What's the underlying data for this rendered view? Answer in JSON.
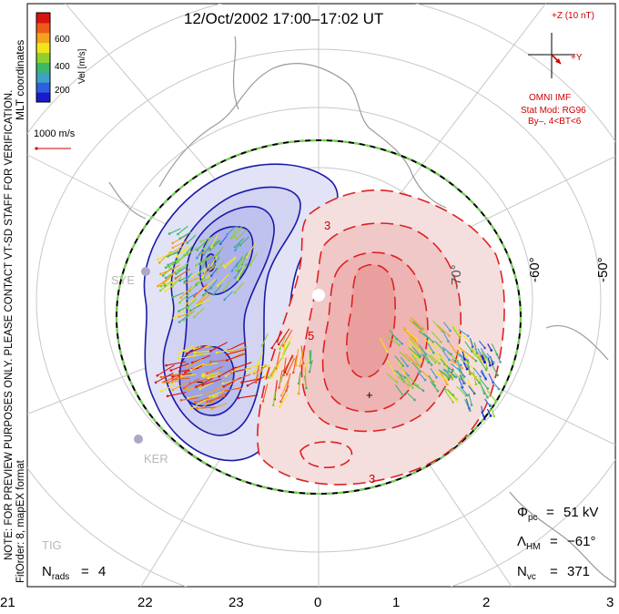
{
  "title": "12/Oct/2002 17:00–17:02 UT",
  "coord_system": "MLT coordinates",
  "watermark": "NOTE: FOR PREVIEW PURPOSES ONLY. PLEASE CONTACT VT-SD STAFF FOR VERIFICATION.",
  "fit_info": "FitOrder: 8, mapEX format",
  "colorbar": {
    "label": "Vel [m/s]",
    "ticks": [
      "600",
      "400",
      "200"
    ],
    "colors": [
      "#1a1acc",
      "#2e5fe0",
      "#3fa0c8",
      "#3db86a",
      "#8ed12f",
      "#f2e51c",
      "#f5a21c",
      "#ef5a1a",
      "#d8140f"
    ]
  },
  "velocity_scale": "1000 m/s",
  "imf": {
    "z_label": "+Z (10 nT)",
    "y_label": "+Y",
    "source": "OMNI IMF",
    "model_line": "Stat Mod: RG96",
    "condition": "By–, 4<BT<6"
  },
  "latitude_labels": [
    "-50°",
    "-60°",
    "-70°"
  ],
  "contour_labels": [
    "3",
    "3",
    "5"
  ],
  "stations": [
    "SYE",
    "KER",
    "TIG"
  ],
  "mlt_labels": [
    "21",
    "22",
    "23",
    "0",
    "1",
    "2",
    "3"
  ],
  "stats": {
    "phi_pc": "51 kV",
    "lambda_hm": "−61°",
    "n_vc": "371",
    "n_rads": "4"
  },
  "symbols": {
    "plus": "+",
    "minus": "−"
  }
}
